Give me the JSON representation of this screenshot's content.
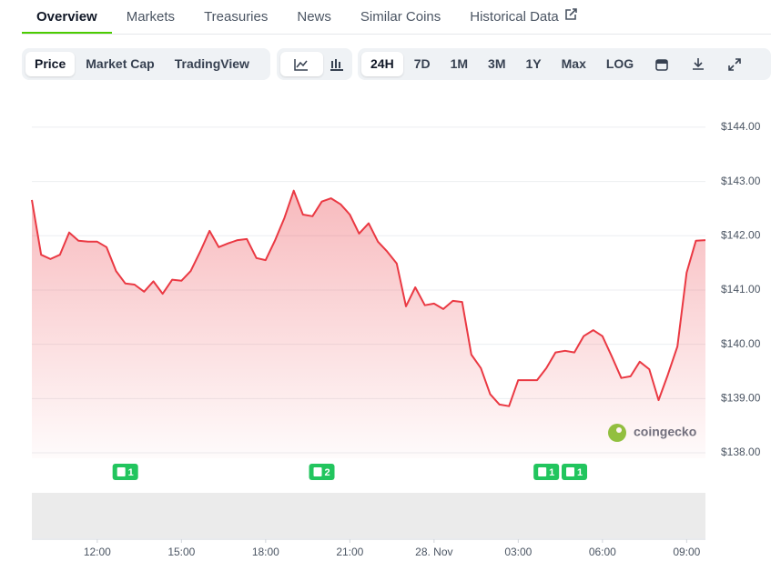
{
  "tabs": [
    "Overview",
    "Markets",
    "Treasuries",
    "News",
    "Similar Coins",
    "Historical Data"
  ],
  "view_buttons": [
    "Price",
    "Market Cap",
    "TradingView"
  ],
  "range_buttons": [
    "24H",
    "7D",
    "1M",
    "3M",
    "1Y",
    "Max",
    "LOG"
  ],
  "chart_data": {
    "type": "area",
    "color": "#ea3943",
    "grid": true,
    "watermark": "coingecko",
    "xlim": [
      9.67,
      33.67
    ],
    "xticks": [
      {
        "value": 12,
        "label": "12:00"
      },
      {
        "value": 15,
        "label": "15:00"
      },
      {
        "value": 18,
        "label": "18:00"
      },
      {
        "value": 21,
        "label": "21:00"
      },
      {
        "value": 24,
        "label": "28. Nov"
      },
      {
        "value": 27,
        "label": "03:00"
      },
      {
        "value": 30,
        "label": "06:00"
      },
      {
        "value": 33,
        "label": "09:00"
      }
    ],
    "ylim": [
      137.9,
      144.3
    ],
    "yticks": [
      {
        "value": 138,
        "label": "$138.00"
      },
      {
        "value": 139,
        "label": "$139.00"
      },
      {
        "value": 140,
        "label": "$140.00"
      },
      {
        "value": 141,
        "label": "$141.00"
      },
      {
        "value": 142,
        "label": "$142.00"
      },
      {
        "value": 143,
        "label": "$143.00"
      },
      {
        "value": 144,
        "label": "$144.00"
      }
    ],
    "x": [
      9.67,
      10,
      10.33,
      10.67,
      11,
      11.33,
      11.67,
      12,
      12.33,
      12.67,
      13,
      13.33,
      13.67,
      14,
      14.33,
      14.67,
      15,
      15.33,
      15.67,
      16,
      16.33,
      16.67,
      17,
      17.33,
      17.67,
      18,
      18.33,
      18.67,
      19,
      19.33,
      19.67,
      20,
      20.33,
      20.67,
      21,
      21.33,
      21.67,
      22,
      22.33,
      22.67,
      23,
      23.33,
      23.67,
      24,
      24.33,
      24.67,
      25,
      25.33,
      25.67,
      26,
      26.33,
      26.67,
      27,
      27.33,
      27.67,
      28,
      28.33,
      28.67,
      29,
      29.33,
      29.67,
      30,
      30.33,
      30.67,
      31,
      31.33,
      31.67,
      32,
      32.33,
      32.67,
      33,
      33.33,
      33.67
    ],
    "series": [
      {
        "name": "Price",
        "values": [
          142.66,
          141.65,
          141.57,
          141.65,
          142.06,
          141.91,
          141.89,
          141.89,
          141.79,
          141.35,
          141.12,
          141.1,
          140.97,
          141.16,
          140.93,
          141.19,
          141.17,
          141.35,
          141.71,
          142.09,
          141.79,
          141.86,
          141.92,
          141.94,
          141.59,
          141.55,
          141.91,
          142.33,
          142.83,
          142.39,
          142.36,
          142.63,
          142.69,
          142.58,
          142.39,
          142.04,
          142.23,
          141.89,
          141.71,
          141.49,
          140.7,
          141.05,
          140.72,
          140.75,
          140.65,
          140.8,
          140.78,
          139.81,
          139.56,
          139.08,
          138.89,
          138.86,
          139.34,
          139.34,
          139.34,
          139.56,
          139.85,
          139.88,
          139.85,
          140.15,
          140.26,
          140.15,
          139.78,
          139.38,
          139.41,
          139.68,
          139.54,
          138.97,
          139.44,
          139.96,
          141.32,
          141.91,
          141.92
        ]
      }
    ],
    "annotations": [
      {
        "x": 13,
        "count": 1
      },
      {
        "x": 20,
        "count": 2
      },
      {
        "x": 28,
        "count": 1
      },
      {
        "x": 29,
        "count": 1
      }
    ]
  }
}
